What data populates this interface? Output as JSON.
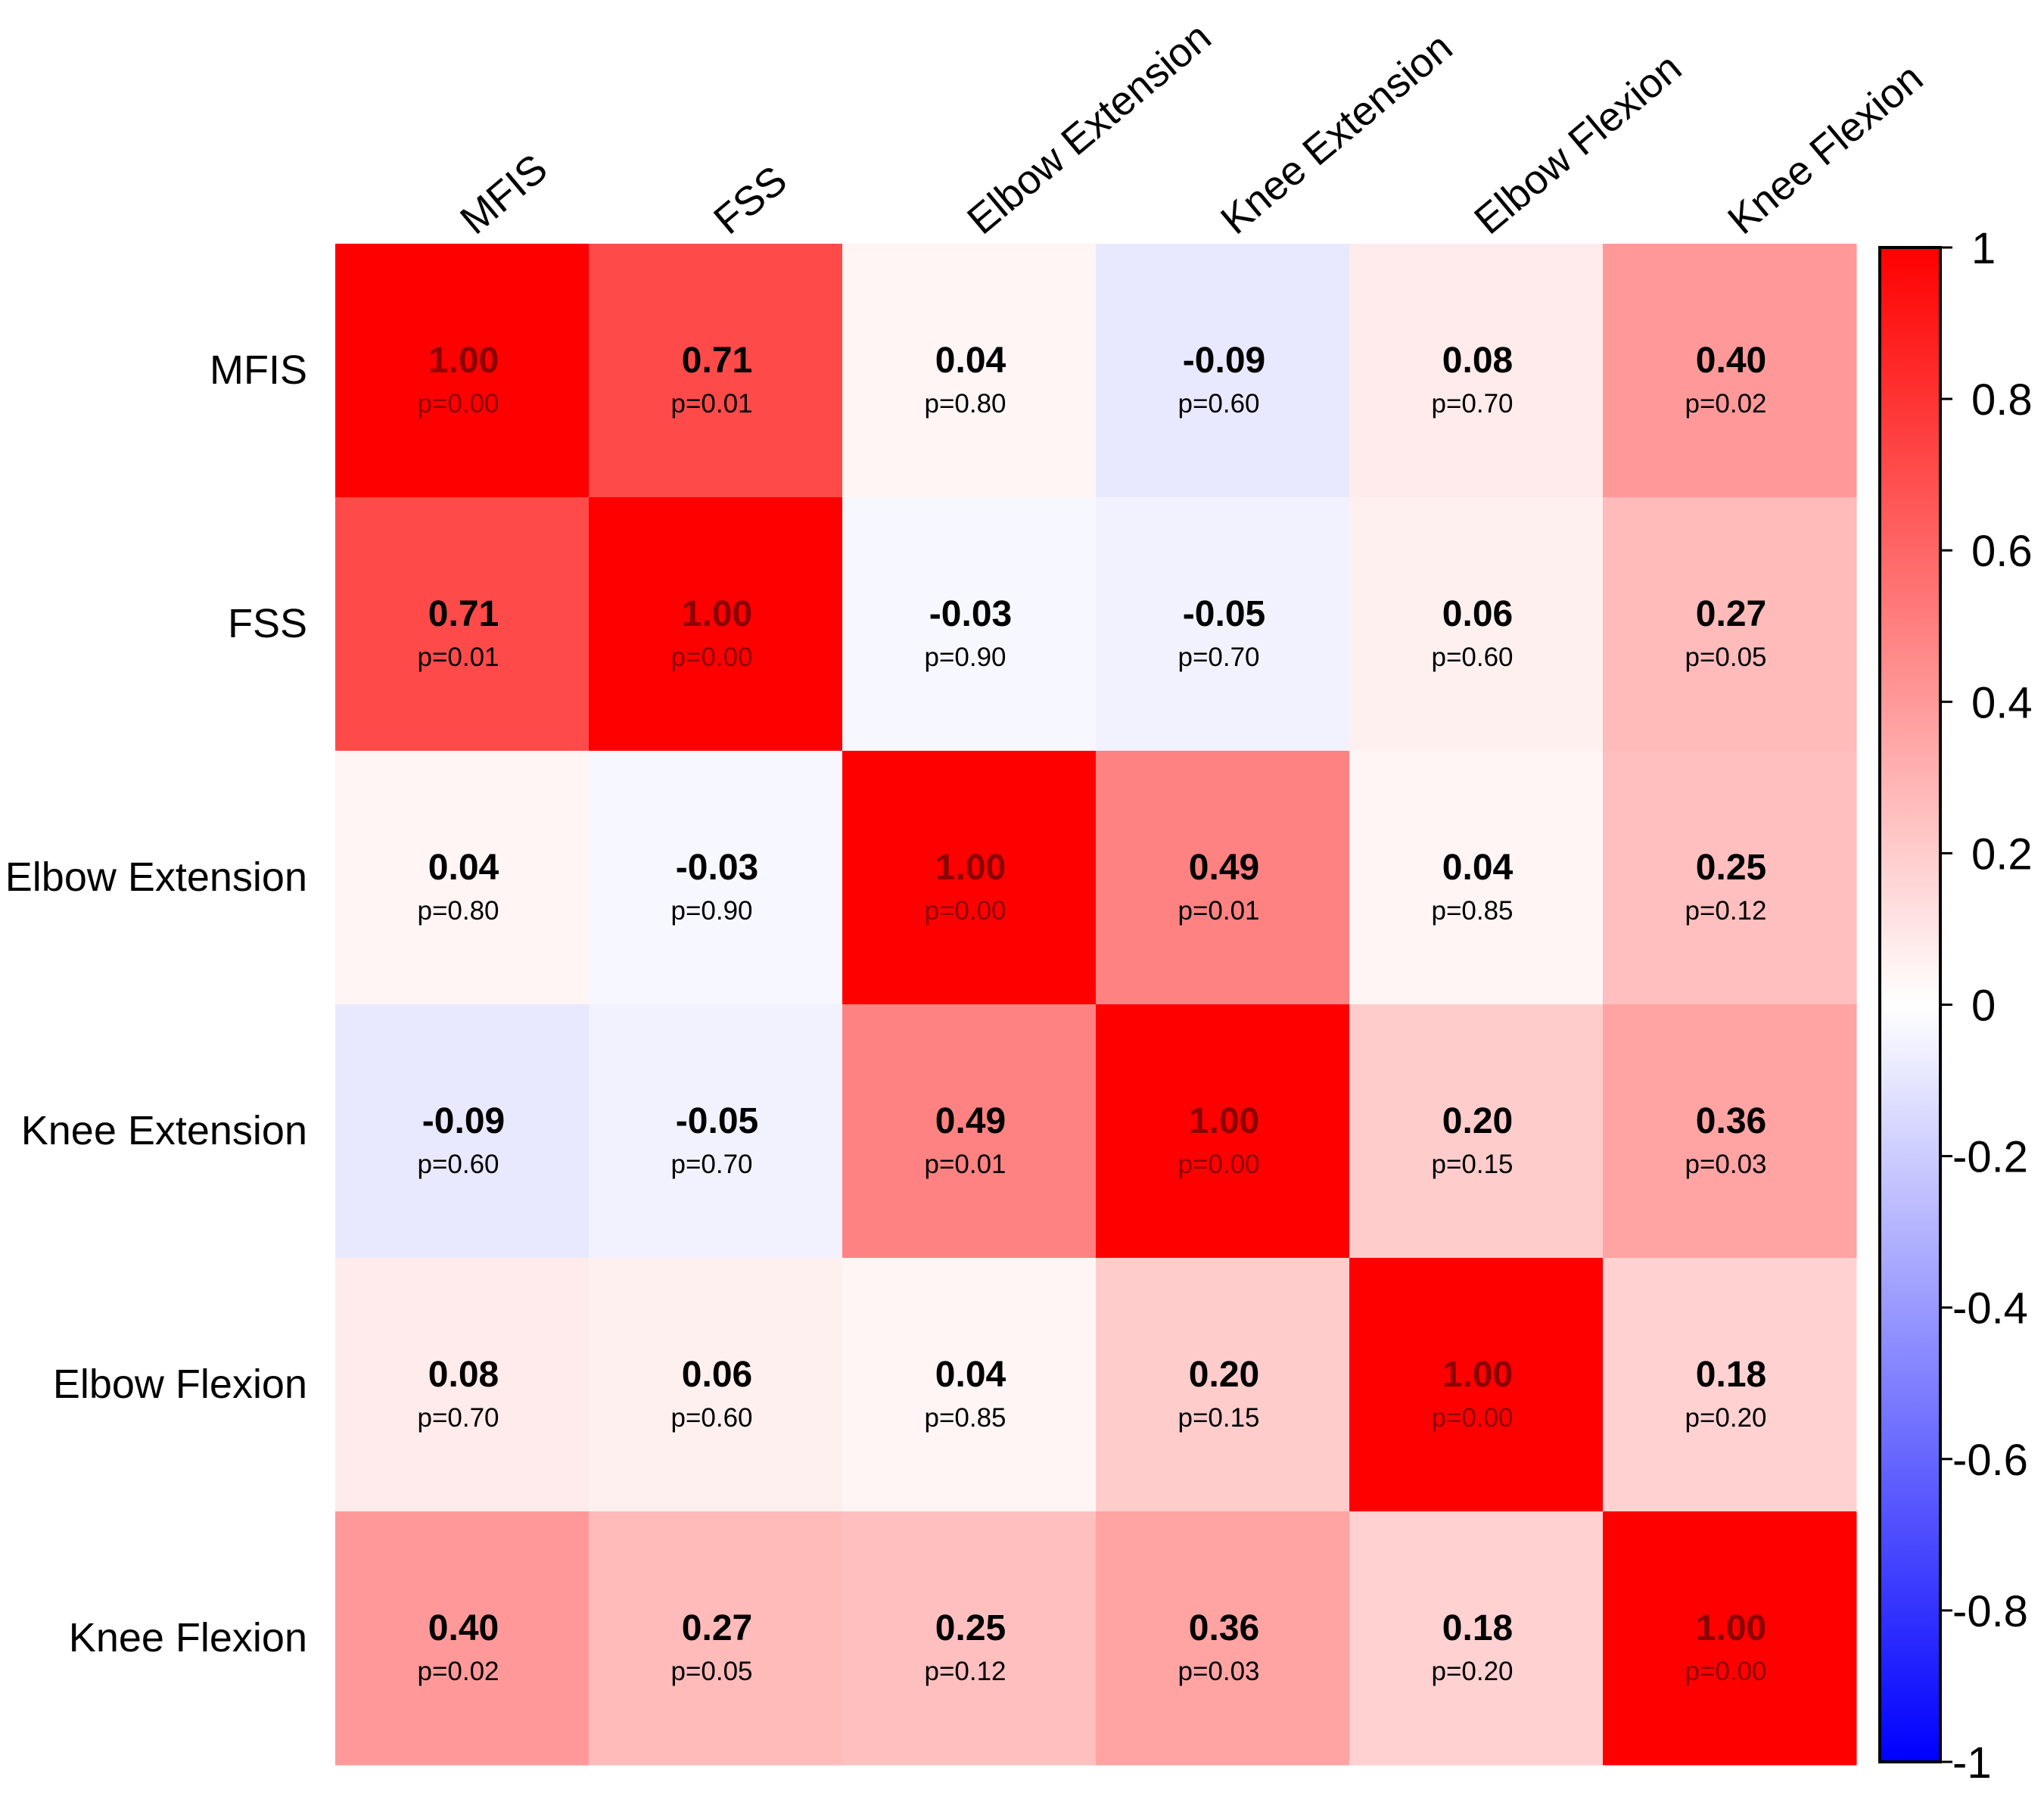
{
  "chart_data": {
    "type": "heatmap",
    "title": "",
    "variables": [
      "MFIS",
      "FSS",
      "Elbow Extension",
      "Knee Extension",
      "Elbow Flexion",
      "Knee Flexion"
    ],
    "values": [
      [
        1.0,
        0.71,
        0.04,
        -0.09,
        0.08,
        0.4
      ],
      [
        0.71,
        1.0,
        -0.03,
        -0.05,
        0.06,
        0.27
      ],
      [
        0.04,
        -0.03,
        1.0,
        0.49,
        0.04,
        0.25
      ],
      [
        -0.09,
        -0.05,
        0.49,
        1.0,
        0.2,
        0.36
      ],
      [
        0.08,
        0.06,
        0.04,
        0.2,
        1.0,
        0.18
      ],
      [
        0.4,
        0.27,
        0.25,
        0.36,
        0.18,
        1.0
      ]
    ],
    "value_labels": [
      [
        "1.00",
        "0.71",
        "0.04",
        "-0.09",
        "0.08",
        "0.40"
      ],
      [
        "0.71",
        "1.00",
        "-0.03",
        "-0.05",
        "0.06",
        "0.27"
      ],
      [
        "0.04",
        "-0.03",
        "1.00",
        "0.49",
        "0.04",
        "0.25"
      ],
      [
        "-0.09",
        "-0.05",
        "0.49",
        "1.00",
        "0.20",
        "0.36"
      ],
      [
        "0.08",
        "0.06",
        "0.04",
        "0.20",
        "1.00",
        "0.18"
      ],
      [
        "0.40",
        "0.27",
        "0.25",
        "0.36",
        "0.18",
        "1.00"
      ]
    ],
    "p_labels": [
      [
        "p=0.00",
        "p=0.01",
        "p=0.80",
        "p=0.60",
        "p=0.70",
        "p=0.02"
      ],
      [
        "p=0.01",
        "p=0.00",
        "p=0.90",
        "p=0.70",
        "p=0.60",
        "p=0.05"
      ],
      [
        "p=0.80",
        "p=0.90",
        "p=0.00",
        "p=0.01",
        "p=0.85",
        "p=0.12"
      ],
      [
        "p=0.60",
        "p=0.70",
        "p=0.01",
        "p=0.00",
        "p=0.15",
        "p=0.03"
      ],
      [
        "p=0.70",
        "p=0.60",
        "p=0.85",
        "p=0.15",
        "p=0.00",
        "p=0.20"
      ],
      [
        "p=0.02",
        "p=0.05",
        "p=0.12",
        "p=0.03",
        "p=0.20",
        "p=0.00"
      ]
    ],
    "colorbar": {
      "range": [
        -1,
        1
      ],
      "ticks": [
        "1",
        "0.8",
        "0.6",
        "0.4",
        "0.2",
        "0",
        "-0.2",
        "-0.4",
        "-0.6",
        "-0.8",
        "-1"
      ],
      "tick_values": [
        1,
        0.8,
        0.6,
        0.4,
        0.2,
        0,
        -0.2,
        -0.4,
        -0.6,
        -0.8,
        -1
      ],
      "low_color": "#0000ff",
      "mid_color": "#ffffff",
      "high_color": "#ff0000"
    },
    "colors": {
      "text": "#000000",
      "diagonal_text": "#8b0000"
    }
  }
}
